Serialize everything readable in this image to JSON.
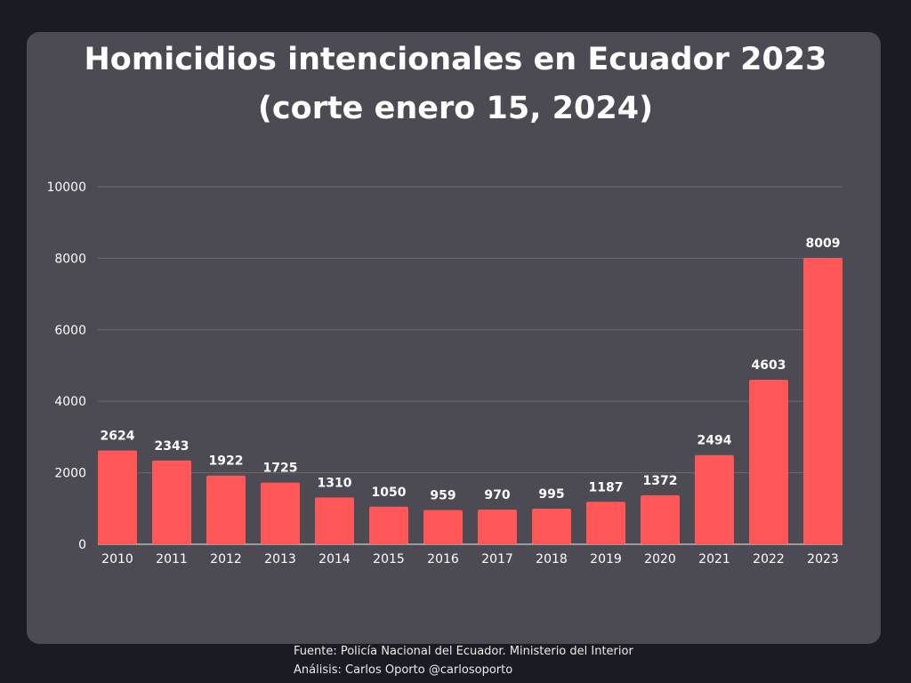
{
  "chart_data": {
    "type": "bar",
    "title_line1": "Homicidios intencionales en Ecuador 2023",
    "title_line2": "(corte enero 15, 2024)",
    "categories": [
      "2010",
      "2011",
      "2012",
      "2013",
      "2014",
      "2015",
      "2016",
      "2017",
      "2018",
      "2019",
      "2020",
      "2021",
      "2022",
      "2023"
    ],
    "values": [
      2624,
      2343,
      1922,
      1725,
      1310,
      1050,
      959,
      970,
      995,
      1187,
      1372,
      2494,
      4603,
      8009
    ],
    "yticks": [
      0,
      2000,
      4000,
      6000,
      8000,
      10000
    ],
    "ylim": [
      0,
      10000
    ],
    "grid": true,
    "bar_color": "#ff5757",
    "data_labels": true
  },
  "footer": {
    "source": "Fuente: Policía Nacional del Ecuador. Ministerio del Interior",
    "analysis": "Análisis: Carlos Oporto @carlosoporto"
  },
  "colors": {
    "background": "#1b1b23",
    "card": "#4c4a53",
    "bar": "#ff5757",
    "text": "#ffffff",
    "grid": "#6a6871"
  }
}
